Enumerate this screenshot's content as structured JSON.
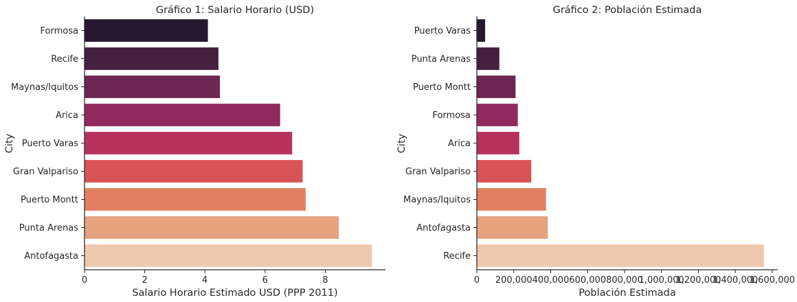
{
  "chart_data": [
    {
      "type": "bar",
      "orientation": "horizontal",
      "title": "Gráfico 1: Salario Horario (USD)",
      "xlabel": "Salario Horario Estimado USD (PPP 2011)",
      "ylabel": "City",
      "categories": [
        "Formosa",
        "Recife",
        "Maynas/Iquitos",
        "Arica",
        "Puerto Varas",
        "Gran Valpariso",
        "Puerto Montt",
        "Punta Arenas",
        "Antofagasta"
      ],
      "values": [
        4.1,
        4.45,
        4.5,
        6.5,
        6.9,
        7.25,
        7.35,
        8.45,
        9.55
      ],
      "xlim": [
        0,
        10
      ],
      "xticks": [
        0,
        2,
        4,
        6,
        8
      ],
      "xtick_labels": [
        "0",
        "2",
        "4",
        "6",
        "8"
      ],
      "colors": [
        "#27172f",
        "#44203e",
        "#6c2752",
        "#912a5c",
        "#b8315c",
        "#d85355",
        "#e37f61",
        "#e6a37f",
        "#eec8ae"
      ]
    },
    {
      "type": "bar",
      "orientation": "horizontal",
      "title": "Gráfico 2: Población Estimada",
      "xlabel": "Población Estimada",
      "ylabel": "City",
      "categories": [
        "Puerto Varas",
        "Punta Arenas",
        "Puerto Montt",
        "Formosa",
        "Arica",
        "Gran Valpariso",
        "Maynas/Iquitos",
        "Antofagasta",
        "Recife"
      ],
      "values": [
        45000,
        122000,
        210000,
        222000,
        230000,
        295000,
        375000,
        385000,
        1555000
      ],
      "xlim": [
        0,
        1630000
      ],
      "xticks": [
        0,
        200000,
        400000,
        600000,
        800000,
        1000000,
        1200000,
        1400000,
        1600000
      ],
      "xtick_labels": [
        "0",
        "200,000",
        "400,000",
        "600,000",
        "800,000",
        "1,000,000",
        "1,200,000",
        "1,400,000",
        "1,600,000"
      ],
      "colors": [
        "#27172f",
        "#44203e",
        "#6c2752",
        "#912a5c",
        "#b8315c",
        "#d85355",
        "#e37f61",
        "#e6a37f",
        "#eec8ae"
      ]
    }
  ]
}
